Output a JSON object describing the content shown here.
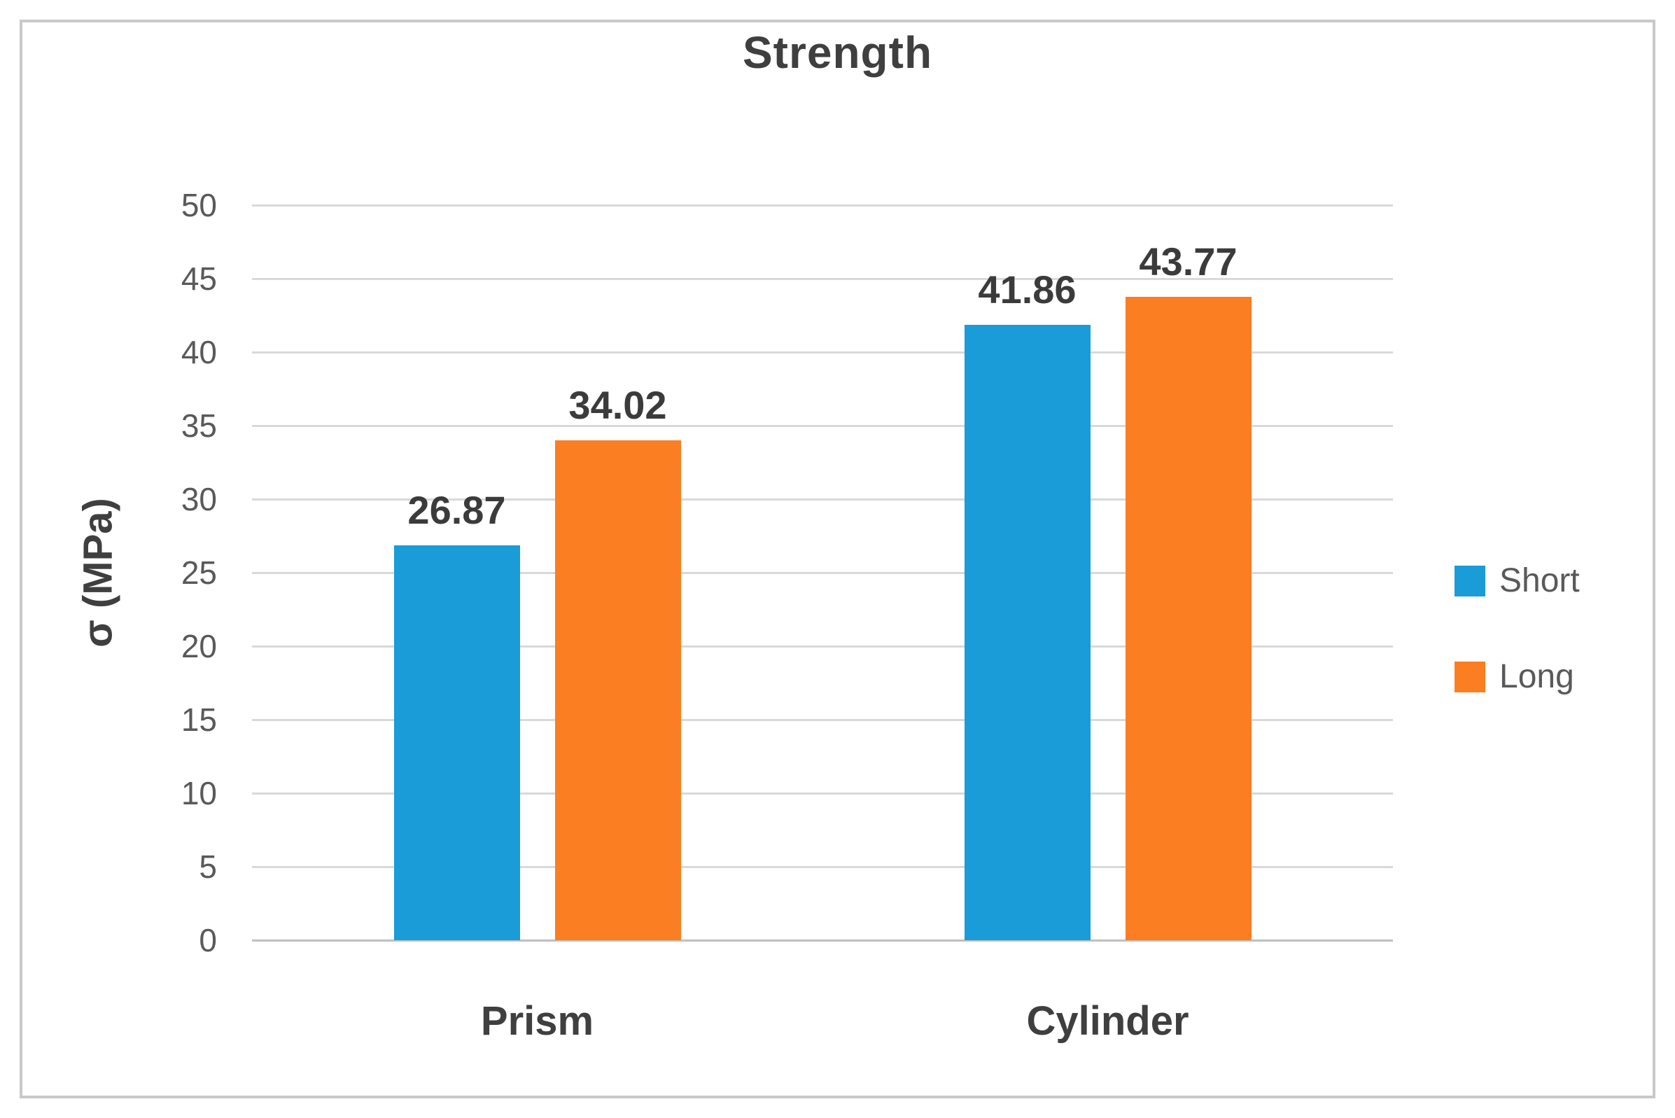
{
  "chart_data": {
    "type": "bar",
    "title": "Strength",
    "ylabel": "σ (MPa)",
    "xlabel": "",
    "categories": [
      "Prism",
      "Cylinder"
    ],
    "series": [
      {
        "name": "Short",
        "color": "#199CD8",
        "values": [
          26.87,
          41.86
        ],
        "labels": [
          "26.87",
          "41.86"
        ]
      },
      {
        "name": "Long",
        "color": "#FB7E23",
        "values": [
          34.02,
          43.77
        ],
        "labels": [
          "34.02",
          "43.77"
        ]
      }
    ],
    "ylim": [
      0,
      50
    ],
    "yticks": [
      0,
      5,
      10,
      15,
      20,
      25,
      30,
      35,
      40,
      45,
      50
    ],
    "grid": true,
    "legend_position": "right"
  },
  "colors": {
    "title_text": "#3F3F3F",
    "tick_text": "#595959",
    "data_label_text": "#3B3B3B",
    "gridline": "#D9D9D9",
    "axis_line": "#BFBFBF",
    "frame_border": "#C9C9C9",
    "background": "#FFFFFF"
  }
}
